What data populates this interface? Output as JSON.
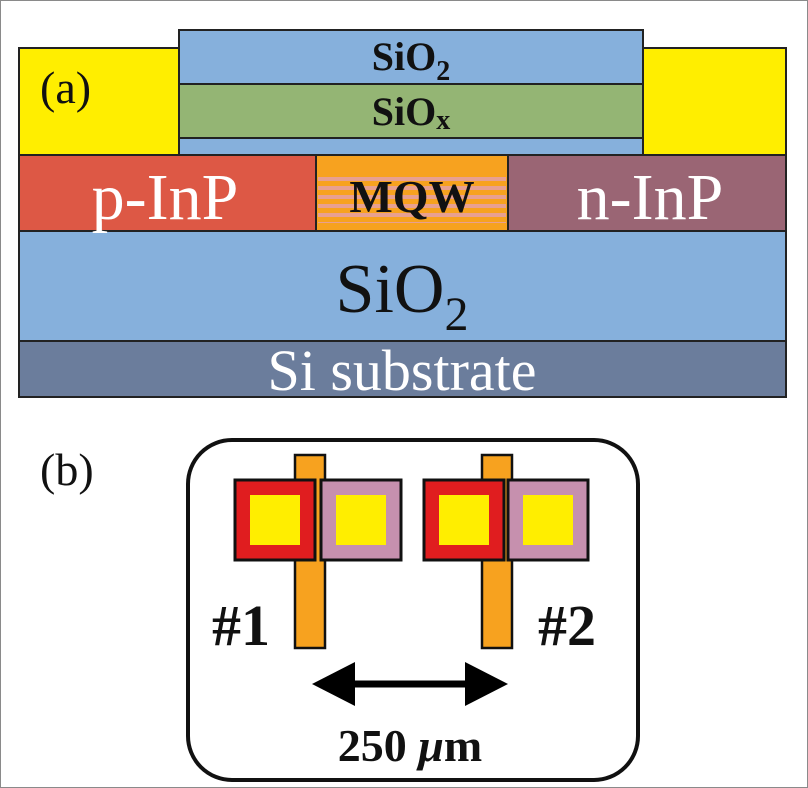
{
  "panel_a": {
    "label": "(a)",
    "top_sio2_label": "SiO",
    "top_sio2_sub": "2",
    "siox_label": "SiO",
    "siox_sub": "x",
    "p_inp_label": "p-InP",
    "mqw_label": "MQW",
    "n_inp_label": "n-InP",
    "buried_sio2_label": "SiO",
    "buried_sio2_sub": "2",
    "substrate_label": "Si substrate"
  },
  "panel_b": {
    "label": "(b)",
    "device1_label": "#1",
    "device2_label": "#2",
    "spacing_label": "250 ",
    "spacing_unit_mu": "μ",
    "spacing_unit_m": "m"
  },
  "colors": {
    "contact_yellow": "#ffee00",
    "sio2_blue": "#86b0dc",
    "siox_green": "#94b574",
    "p_inp": "#dd5845",
    "mqw_orange": "#f7a21f",
    "mqw_stripe": "#e8a090",
    "n_inp": "#9a6574",
    "substrate": "#6b7d9c",
    "p_pad_border": "#e01d1f",
    "n_pad_border": "#c690ae"
  }
}
